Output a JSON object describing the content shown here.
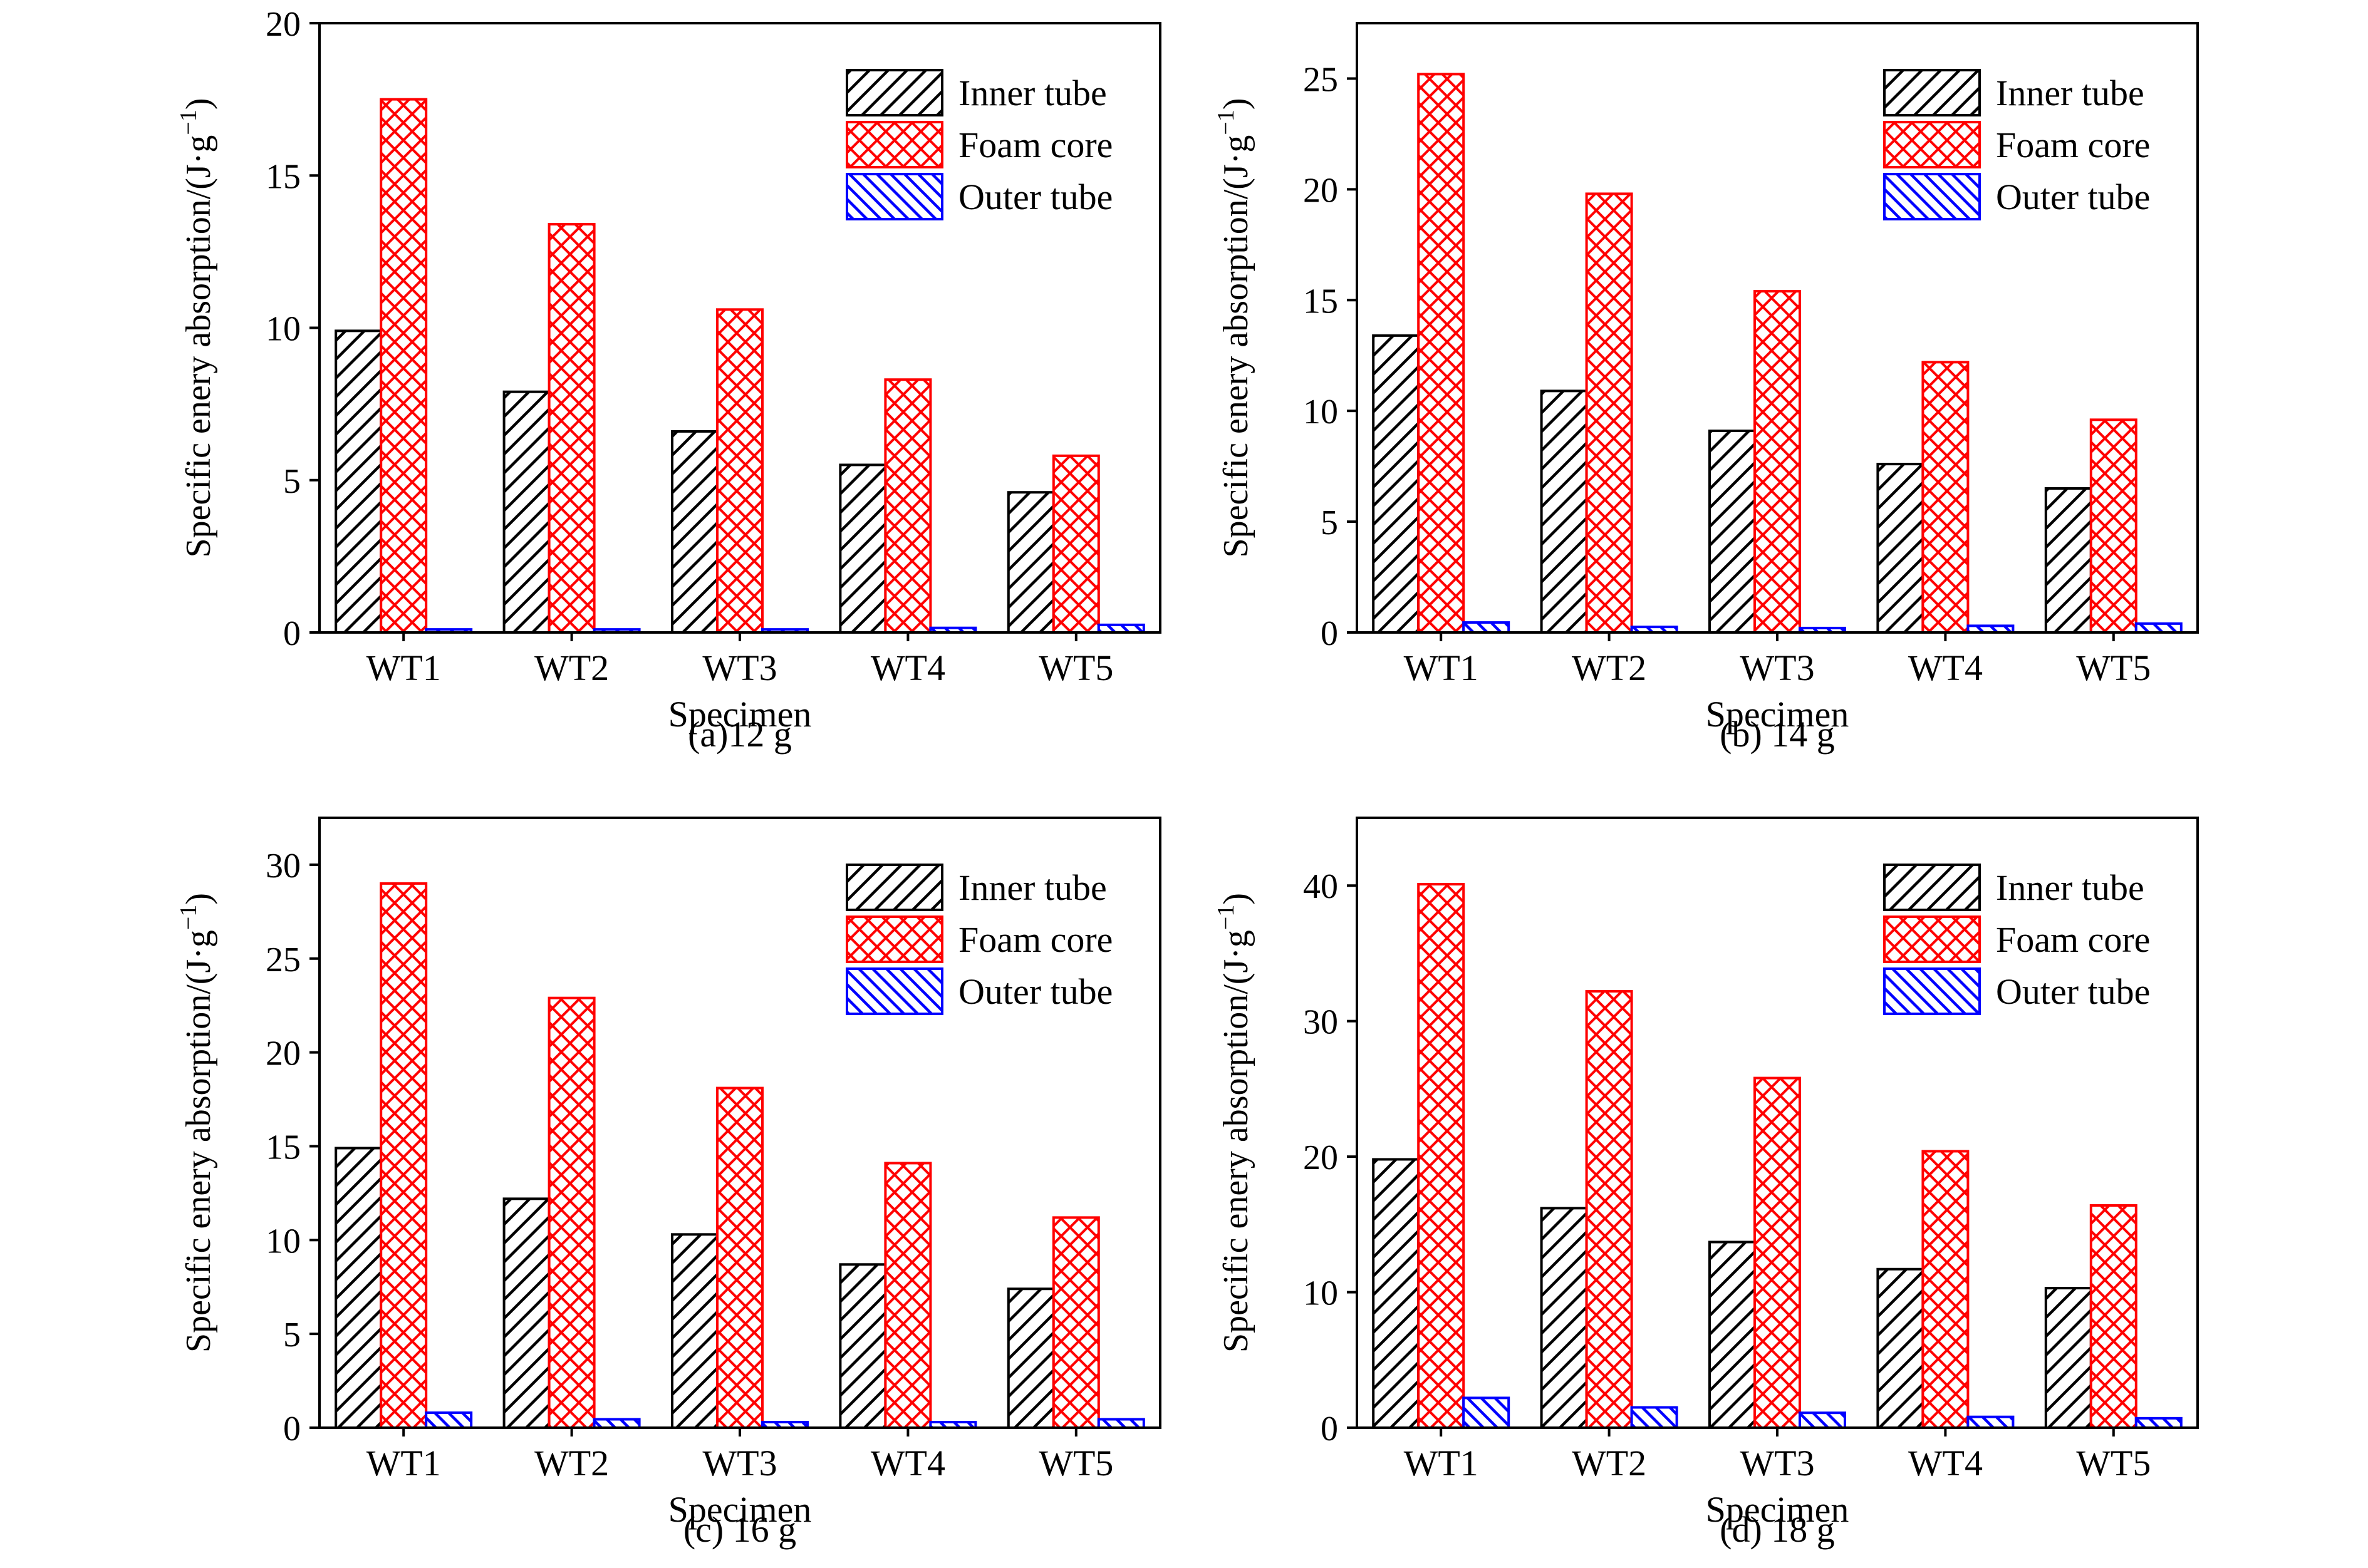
{
  "figure": {
    "legend_labels": [
      "Inner tube",
      "Foam core",
      "Outer tube"
    ],
    "colors": {
      "inner_tube": "#000000",
      "foam_core": "#ff0000",
      "outer_tube": "#0000ff"
    }
  },
  "chart_data": [
    {
      "type": "bar",
      "caption": "(a)12 g",
      "xlabel": "Specimen",
      "ylabel": "Specific enery absorption/(J·g",
      "ylabel_sup": "−1",
      "ylabel_tail": ")",
      "ylim": [
        0,
        20
      ],
      "yticks": [
        0,
        5,
        10,
        15,
        20
      ],
      "grid": false,
      "legend_position": "top-right",
      "categories": [
        "WT1",
        "WT2",
        "WT3",
        "WT4",
        "WT5"
      ],
      "series": [
        {
          "name": "Inner tube",
          "pattern": "hatch-right",
          "color": "#000000",
          "values": [
            9.9,
            7.9,
            6.6,
            5.5,
            4.6
          ]
        },
        {
          "name": "Foam core",
          "pattern": "crosshatch",
          "color": "#ff0000",
          "values": [
            17.5,
            13.4,
            10.6,
            8.3,
            5.8
          ]
        },
        {
          "name": "Outer tube",
          "pattern": "hatch-left",
          "color": "#0000ff",
          "values": [
            0.1,
            0.1,
            0.1,
            0.15,
            0.25
          ]
        }
      ]
    },
    {
      "type": "bar",
      "caption": "(b) 14 g",
      "xlabel": "Specimen",
      "ylabel": "Specific enery absorption/(J·g",
      "ylabel_sup": "−1",
      "ylabel_tail": ")",
      "ylim": [
        0,
        27.5
      ],
      "yticks": [
        0,
        5,
        10,
        15,
        20,
        25
      ],
      "grid": false,
      "legend_position": "top-right",
      "categories": [
        "WT1",
        "WT2",
        "WT3",
        "WT4",
        "WT5"
      ],
      "series": [
        {
          "name": "Inner tube",
          "pattern": "hatch-right",
          "color": "#000000",
          "values": [
            13.4,
            10.9,
            9.1,
            7.6,
            6.5
          ]
        },
        {
          "name": "Foam core",
          "pattern": "crosshatch",
          "color": "#ff0000",
          "values": [
            25.2,
            19.8,
            15.4,
            12.2,
            9.6
          ]
        },
        {
          "name": "Outer tube",
          "pattern": "hatch-left",
          "color": "#0000ff",
          "values": [
            0.45,
            0.25,
            0.2,
            0.3,
            0.4
          ]
        }
      ]
    },
    {
      "type": "bar",
      "caption": "(c) 16 g",
      "xlabel": "Specimen",
      "ylabel": "Specific enery absorption/(J·g",
      "ylabel_sup": "−1",
      "ylabel_tail": ")",
      "ylim": [
        0,
        32.5
      ],
      "yticks": [
        0,
        5,
        10,
        15,
        20,
        25,
        30
      ],
      "grid": false,
      "legend_position": "top-right",
      "categories": [
        "WT1",
        "WT2",
        "WT3",
        "WT4",
        "WT5"
      ],
      "series": [
        {
          "name": "Inner tube",
          "pattern": "hatch-right",
          "color": "#000000",
          "values": [
            14.9,
            12.2,
            10.3,
            8.7,
            7.4
          ]
        },
        {
          "name": "Foam core",
          "pattern": "crosshatch",
          "color": "#ff0000",
          "values": [
            29.0,
            22.9,
            18.1,
            14.1,
            11.2
          ]
        },
        {
          "name": "Outer tube",
          "pattern": "hatch-left",
          "color": "#0000ff",
          "values": [
            0.8,
            0.45,
            0.3,
            0.3,
            0.45
          ]
        }
      ]
    },
    {
      "type": "bar",
      "caption": "(d) 18 g",
      "xlabel": "Specimen",
      "ylabel": "Specific enery absorption/(J·g",
      "ylabel_sup": "−1",
      "ylabel_tail": ")",
      "ylim": [
        0,
        45
      ],
      "yticks": [
        0,
        10,
        20,
        30,
        40
      ],
      "grid": false,
      "legend_position": "top-right",
      "categories": [
        "WT1",
        "WT2",
        "WT3",
        "WT4",
        "WT5"
      ],
      "series": [
        {
          "name": "Inner tube",
          "pattern": "hatch-right",
          "color": "#000000",
          "values": [
            19.8,
            16.2,
            13.7,
            11.7,
            10.3
          ]
        },
        {
          "name": "Foam core",
          "pattern": "crosshatch",
          "color": "#ff0000",
          "values": [
            40.1,
            32.2,
            25.8,
            20.4,
            16.4
          ]
        },
        {
          "name": "Outer tube",
          "pattern": "hatch-left",
          "color": "#0000ff",
          "values": [
            2.2,
            1.5,
            1.1,
            0.8,
            0.7
          ]
        }
      ]
    }
  ]
}
